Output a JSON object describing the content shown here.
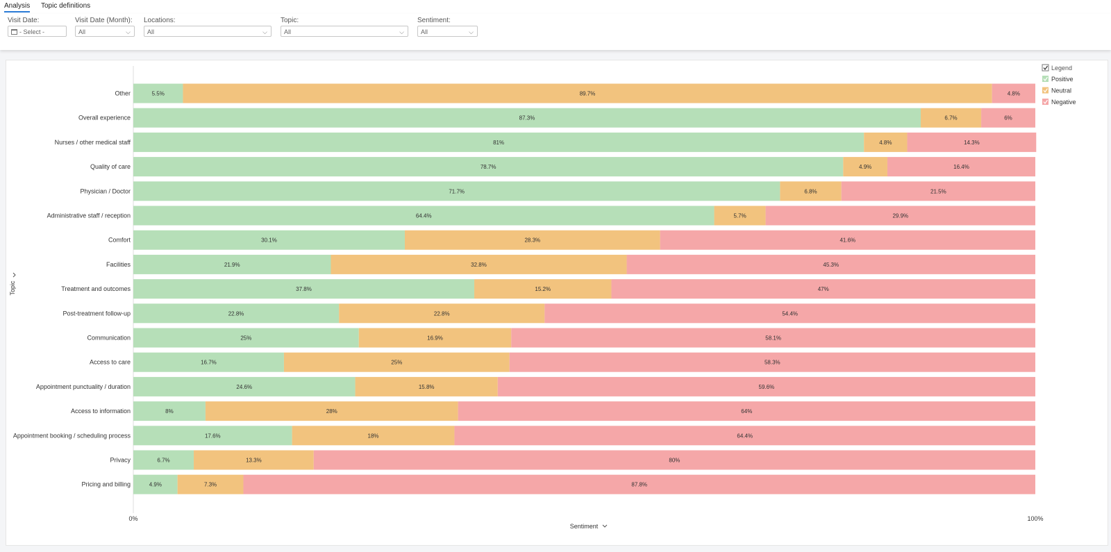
{
  "tabs": [
    {
      "label": "Analysis",
      "active": true
    },
    {
      "label": "Topic definitions",
      "active": false
    }
  ],
  "filters": [
    {
      "label": "Visit Date:",
      "value": "- Select -",
      "icon": "calendar-icon"
    },
    {
      "label": "Visit Date (Month):",
      "value": "All"
    },
    {
      "label": "Locations:",
      "value": "All"
    },
    {
      "label": "Topic:",
      "value": "All"
    },
    {
      "label": "Sentiment:",
      "value": "All"
    }
  ],
  "colors": {
    "positive": "#b6dfb8",
    "neutral": "#f2c37e",
    "negative": "#f5a7a8"
  },
  "chart_data": {
    "type": "bar",
    "orientation": "horizontal",
    "stacked": "percent",
    "ylabel": "Topic",
    "xlabel": "Sentiment",
    "xlim": [
      0,
      100
    ],
    "x_ticks": [
      "0%",
      "100%"
    ],
    "legend": {
      "title": "Legend",
      "position": "top-right"
    },
    "categories": [
      "Other",
      "Overall experience",
      "Nurses / other medical staff",
      "Quality of care",
      "Physician / Doctor",
      "Administrative staff / reception",
      "Comfort",
      "Facilities",
      "Treatment and outcomes",
      "Post-treatment follow-up",
      "Communication",
      "Access to care",
      "Appointment punctuality / duration",
      "Access to information",
      "Appointment booking / scheduling process",
      "Privacy",
      "Pricing and billing"
    ],
    "series": [
      {
        "name": "Positive",
        "values": [
          5.5,
          87.3,
          81,
          78.7,
          71.7,
          64.4,
          30.1,
          21.9,
          37.8,
          22.8,
          25,
          16.7,
          24.6,
          8,
          17.6,
          6.7,
          4.9
        ]
      },
      {
        "name": "Neutral",
        "values": [
          89.7,
          6.7,
          4.8,
          4.9,
          6.8,
          5.7,
          28.3,
          32.8,
          15.2,
          22.8,
          16.9,
          25,
          15.8,
          28,
          18,
          13.3,
          7.3
        ]
      },
      {
        "name": "Negative",
        "values": [
          4.8,
          6,
          14.3,
          16.4,
          21.5,
          29.9,
          41.6,
          45.3,
          47,
          54.4,
          58.1,
          58.3,
          59.6,
          64,
          64.4,
          80,
          87.8
        ]
      }
    ]
  }
}
